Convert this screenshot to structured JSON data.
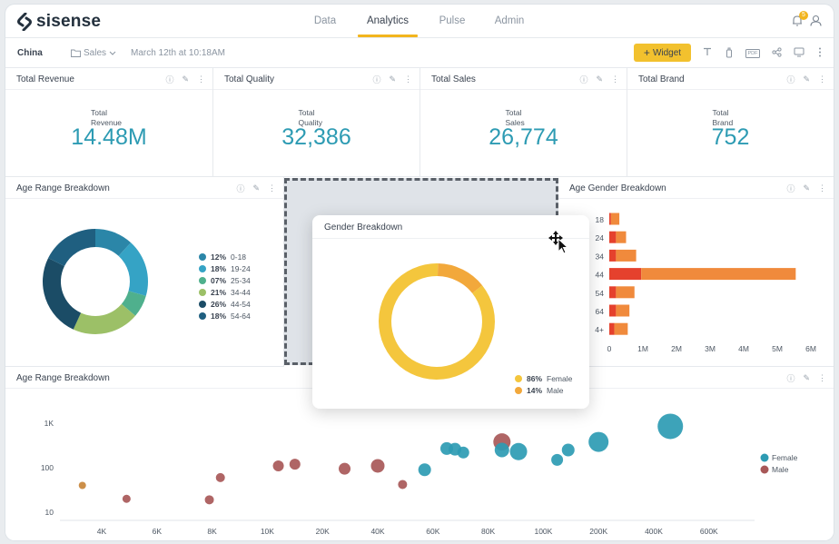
{
  "brand": {
    "logo_text": "sisense"
  },
  "nav": {
    "tabs": [
      {
        "label": "Data"
      },
      {
        "label": "Analytics"
      },
      {
        "label": "Pulse"
      },
      {
        "label": "Admin"
      }
    ],
    "active": "Analytics",
    "notif_count": "5"
  },
  "toolbar": {
    "dashboard_name": "China",
    "folder": "Sales",
    "modified": "March 12th at 10:18AM",
    "widget_button": "Widget",
    "widget_plus": "+",
    "pdf_label": "PDF"
  },
  "kpis": [
    {
      "title": "Total Revenue",
      "label": "Total Revenue",
      "value": "14.48M"
    },
    {
      "title": "Total Quality",
      "label": "Total Quality",
      "value": "32,386"
    },
    {
      "title": "Total Sales",
      "label": "Total Sales",
      "value": "26,774"
    },
    {
      "title": "Total Brand",
      "label": "Total Brand",
      "value": "752"
    }
  ],
  "age_donut": {
    "title": "Age Range Breakdown",
    "slices": [
      {
        "pct": "12%",
        "label": "0-18",
        "value": 12,
        "color": "#2b86a8"
      },
      {
        "pct": "18%",
        "label": "19-24",
        "value": 18,
        "color": "#35a3c5"
      },
      {
        "pct": "07%",
        "label": "25-34",
        "value": 7,
        "color": "#4fb08d"
      },
      {
        "pct": "21%",
        "label": "34-44",
        "value": 21,
        "color": "#9cc067"
      },
      {
        "pct": "26%",
        "label": "44-54",
        "value": 26,
        "color": "#1b4c66"
      },
      {
        "pct": "18%",
        "label": "54-64",
        "value": 18,
        "color": "#1f5f80"
      }
    ]
  },
  "gender_donut": {
    "title": "Gender Breakdown",
    "slices": [
      {
        "pct": "86%",
        "label": "Female",
        "value": 86,
        "color": "#f4c63d"
      },
      {
        "pct": "14%",
        "label": "Male",
        "value": 14,
        "color": "#f2a83b"
      }
    ]
  },
  "age_gender": {
    "title": "Age Gender Breakdown",
    "categories": [
      "18",
      "24",
      "34",
      "44",
      "54",
      "64",
      "4+"
    ],
    "series": [
      {
        "name": "Male",
        "color": "#e5412d",
        "values": [
          0.05,
          0.2,
          0.2,
          0.95,
          0.2,
          0.2,
          0.15
        ]
      },
      {
        "name": "Female",
        "color": "#f08a3c",
        "values": [
          0.25,
          0.3,
          0.6,
          4.6,
          0.55,
          0.4,
          0.4
        ]
      }
    ],
    "xticks": [
      "0",
      "1M",
      "2M",
      "3M",
      "4M",
      "5M",
      "6M"
    ],
    "xmax": 6
  },
  "scatter": {
    "title": "Age Range Breakdown",
    "yticks": [
      "1K",
      "100",
      "10"
    ],
    "xticks": [
      "4K",
      "6K",
      "8K",
      "10K",
      "20K",
      "40K",
      "60K",
      "80K",
      "100K",
      "200K",
      "400K",
      "600K"
    ],
    "legend": [
      {
        "label": "Female",
        "color": "#2d9bb3"
      },
      {
        "label": "Male",
        "color": "#a85858"
      }
    ],
    "points": [
      {
        "xi": -0.35,
        "y": 40,
        "r": 4,
        "s": "orange"
      },
      {
        "xi": 0.45,
        "y": 20,
        "r": 4.5,
        "s": "Male"
      },
      {
        "xi": 1.95,
        "y": 19,
        "r": 5,
        "s": "Male"
      },
      {
        "xi": 2.15,
        "y": 60,
        "r": 5,
        "s": "Male"
      },
      {
        "xi": 3.2,
        "y": 110,
        "r": 6,
        "s": "Male"
      },
      {
        "xi": 3.5,
        "y": 120,
        "r": 6,
        "s": "Male"
      },
      {
        "xi": 4.4,
        "y": 95,
        "r": 6.5,
        "s": "Male"
      },
      {
        "xi": 5.0,
        "y": 110,
        "r": 7.5,
        "s": "Male"
      },
      {
        "xi": 5.45,
        "y": 42,
        "r": 5,
        "s": "Male"
      },
      {
        "xi": 5.85,
        "y": 90,
        "r": 7,
        "s": "Female"
      },
      {
        "xi": 6.25,
        "y": 270,
        "r": 7,
        "s": "Female"
      },
      {
        "xi": 6.4,
        "y": 260,
        "r": 7,
        "s": "Female"
      },
      {
        "xi": 6.55,
        "y": 220,
        "r": 6.5,
        "s": "Female"
      },
      {
        "xi": 7.25,
        "y": 380,
        "r": 9.5,
        "s": "Male"
      },
      {
        "xi": 7.25,
        "y": 250,
        "r": 8,
        "s": "Female"
      },
      {
        "xi": 7.55,
        "y": 230,
        "r": 9.5,
        "s": "Female"
      },
      {
        "xi": 8.25,
        "y": 150,
        "r": 6.5,
        "s": "Female"
      },
      {
        "xi": 8.45,
        "y": 250,
        "r": 7,
        "s": "Female"
      },
      {
        "xi": 9.0,
        "y": 380,
        "r": 11,
        "s": "Female"
      },
      {
        "xi": 10.3,
        "y": 850,
        "r": 14,
        "s": "Female"
      }
    ]
  }
}
